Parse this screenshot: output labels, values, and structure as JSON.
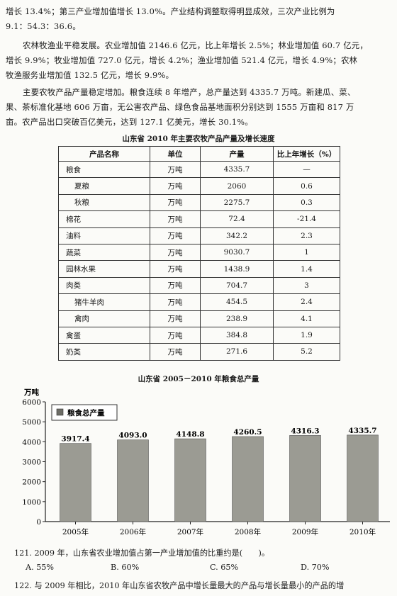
{
  "paragraphs": {
    "p1_l1": "增长 13.4%；第三产业增加值增长 13.0%。产业结构调整取得明显成效，三次产业比例为",
    "p1_l2": "9.1：54.3：36.6。",
    "p2_l1": "农林牧渔业平稳发展。农业增加值 2146.6 亿元，比上年增长 2.5%；林业增加值 60.7 亿元，",
    "p2_l2": "增长 9.9%；牧业增加值 727.0 亿元，增长 4.2%；渔业增加值 521.4 亿元，增长 4.9%；农林",
    "p2_l3": "牧渔服务业增加值 132.5 亿元，增长 9.9%。",
    "p3_l1": "主要农牧产品产量稳定增加。粮食连续 8 年增产，总产量达到 4335.7 万吨。新建瓜、菜、",
    "p3_l2": "果、茶标准化基地 606 万亩，无公害农产品、绿色食品基地面积分别达到 1555 万亩和 817 万",
    "p3_l3": "亩。农产品出口突破百亿美元，达到 127.1 亿美元，增长 30.1%。"
  },
  "table": {
    "caption": "山东省 2010 年主要农牧产品产量及增长速度",
    "headers": [
      "产品名称",
      "单位",
      "产量",
      "比上年增长（%）"
    ],
    "rows": [
      {
        "name": "粮食",
        "unit": "万吨",
        "output": "4335.7",
        "growth": "—",
        "sub": false
      },
      {
        "name": "夏粮",
        "unit": "万吨",
        "output": "2060",
        "growth": "0.6",
        "sub": true
      },
      {
        "name": "秋粮",
        "unit": "万吨",
        "output": "2275.7",
        "growth": "0.3",
        "sub": true
      },
      {
        "name": "棉花",
        "unit": "万吨",
        "output": "72.4",
        "growth": "-21.4",
        "sub": false
      },
      {
        "name": "油料",
        "unit": "万吨",
        "output": "342.2",
        "growth": "2.3",
        "sub": false
      },
      {
        "name": "蔬菜",
        "unit": "万吨",
        "output": "9030.7",
        "growth": "1",
        "sub": false
      },
      {
        "name": "园林水果",
        "unit": "万吨",
        "output": "1438.9",
        "growth": "1.4",
        "sub": false
      },
      {
        "name": "肉类",
        "unit": "万吨",
        "output": "704.7",
        "growth": "3",
        "sub": false
      },
      {
        "name": "猪牛羊肉",
        "unit": "万吨",
        "output": "454.5",
        "growth": "2.4",
        "sub": true
      },
      {
        "name": "禽肉",
        "unit": "万吨",
        "output": "238.9",
        "growth": "4.1",
        "sub": true
      },
      {
        "name": "禽蛋",
        "unit": "万吨",
        "output": "384.8",
        "growth": "1.9",
        "sub": false
      },
      {
        "name": "奶类",
        "unit": "万吨",
        "output": "271.6",
        "growth": "5.2",
        "sub": false
      }
    ]
  },
  "chart_data": {
    "type": "bar",
    "title": "山东省 2005－2010 年粮食总产量",
    "ylabel": "万吨",
    "ylim": [
      0,
      6000
    ],
    "yticks": [
      0,
      1000,
      2000,
      3000,
      4000,
      5000,
      6000
    ],
    "categories": [
      "2005年",
      "2006年",
      "2007年",
      "2008年",
      "2009年",
      "2010年"
    ],
    "series": [
      {
        "name": "粮食总产量",
        "values": [
          3917.4,
          4093.0,
          4148.8,
          4260.5,
          4316.3,
          4335.7
        ]
      }
    ],
    "value_labels": [
      "3917.4",
      "4093.0",
      "4148.8",
      "4260.5",
      "4316.3",
      "4335.7"
    ],
    "legend": "top-left",
    "grid": false
  },
  "questions": {
    "q121": "121. 2009 年，山东省农业增加值占第一产业增加值的比重约是(　　)。",
    "q121_options": [
      "A. 55%",
      "B. 60%",
      "C. 65%",
      "D. 70%"
    ],
    "q122": "122. 与 2009 年相比，2010 年山东省农牧产品中增长量最大的产品与增长量最小的产品的增"
  }
}
